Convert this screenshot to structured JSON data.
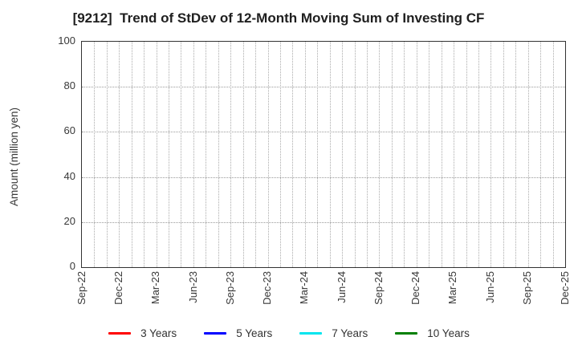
{
  "chart_data": {
    "type": "line",
    "title": "[9212]  Trend of StDev of 12-Month Moving Sum of Investing CF",
    "ylabel": "Amount (million yen)",
    "xlabel": "",
    "ylim": [
      0,
      100
    ],
    "yticks": [
      0,
      20,
      40,
      60,
      80,
      100
    ],
    "x_tick_labels": [
      "Sep-22",
      "Dec-22",
      "Mar-23",
      "Jun-23",
      "Sep-23",
      "Dec-23",
      "Mar-24",
      "Jun-24",
      "Sep-24",
      "Dec-24",
      "Mar-25",
      "Jun-25",
      "Sep-25",
      "Dec-25"
    ],
    "x_label_interval_months": 3,
    "grid": true,
    "grid_style": "dotted",
    "legend_position": "bottom",
    "series": [
      {
        "name": "3 Years",
        "color": "#FF0000",
        "values": []
      },
      {
        "name": "5 Years",
        "color": "#0000FF",
        "values": []
      },
      {
        "name": "7 Years",
        "color": "#00E5EE",
        "values": []
      },
      {
        "name": "10 Years",
        "color": "#007F00",
        "values": []
      }
    ]
  },
  "colors": {
    "grid_vertical": "#ababab",
    "grid_horizontal": "#9a9a9a",
    "axis_border": "#333333",
    "title_text": "#1f1f1f",
    "tick_text": "#383838"
  }
}
